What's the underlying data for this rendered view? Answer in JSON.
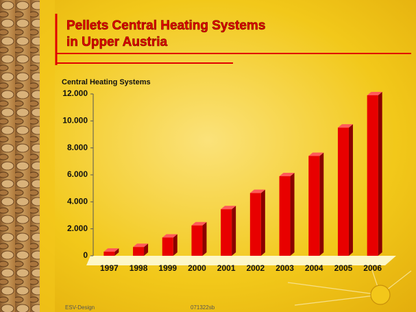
{
  "chart_data": {
    "type": "bar",
    "title": [
      "Pellets Central Heating Systems",
      "in Upper Austria"
    ],
    "y_label": "Central Heating Systems",
    "categories": [
      "1997",
      "1998",
      "1999",
      "2000",
      "2001",
      "2002",
      "2003",
      "2004",
      "2005",
      "2006"
    ],
    "values": [
      300,
      650,
      1350,
      2250,
      3450,
      4650,
      5900,
      7400,
      9500,
      11900
    ],
    "color": "#e80000",
    "ylim": [
      0,
      12000
    ],
    "yticks": [
      0,
      {
        "value": 2000,
        "label": "2.000"
      },
      {
        "value": 4000,
        "label": "4.000"
      },
      {
        "value": 6000,
        "label": "6.000"
      },
      {
        "value": 8000,
        "label": "8.000"
      },
      {
        "value": 10000,
        "label": "10.000"
      },
      {
        "value": 12000,
        "label": "12.000"
      }
    ],
    "footer": [
      "ESV-Design",
      "071322sb"
    ]
  }
}
